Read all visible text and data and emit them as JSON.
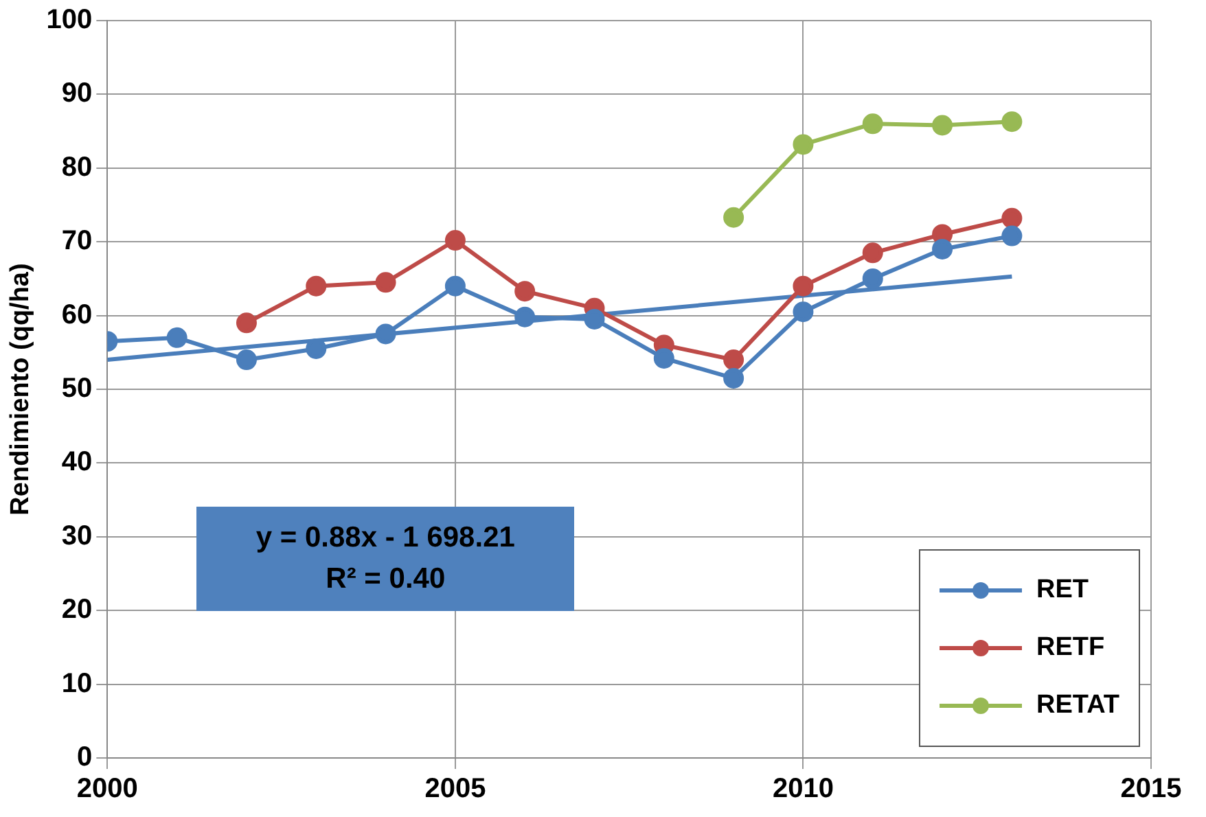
{
  "chart_data": {
    "type": "line",
    "ylabel": "Rendimiento (qq/ha)",
    "xlim": [
      2000,
      2015
    ],
    "xticks": [
      2000,
      2005,
      2010,
      2015
    ],
    "ylim": [
      0,
      100
    ],
    "yticks": [
      0,
      10,
      20,
      30,
      40,
      50,
      60,
      70,
      80,
      90,
      100
    ],
    "grid": true,
    "legend": "bottom right",
    "marker": "circle",
    "line_style": "solid",
    "series": [
      {
        "name": "RET",
        "color": "#4a7ebb",
        "x": [
          2000,
          2001,
          2002,
          2003,
          2004,
          2005,
          2006,
          2007,
          2008,
          2009,
          2010,
          2011,
          2012,
          2013
        ],
        "values": [
          56.5,
          57,
          54,
          55.5,
          57.5,
          64,
          59.8,
          59.5,
          54.2,
          51.5,
          60.5,
          65,
          69,
          70.8
        ]
      },
      {
        "name": "RETF",
        "color": "#be4b48",
        "x": [
          2002,
          2003,
          2004,
          2005,
          2006,
          2007,
          2008,
          2009,
          2010,
          2011,
          2012,
          2013
        ],
        "values": [
          59,
          64,
          64.5,
          70.2,
          63.3,
          61,
          56,
          54,
          64,
          68.5,
          71,
          73.2
        ]
      },
      {
        "name": "RETAT",
        "color": "#98b954",
        "x": [
          2009,
          2010,
          2011,
          2012,
          2013
        ],
        "values": [
          73.3,
          83.2,
          86,
          85.8,
          86.3
        ]
      },
      {
        "type": "line",
        "marker": "none",
        "color": "#4a7ebb",
        "x": [
          2000,
          2013
        ],
        "values": [
          54,
          65.3
        ]
      }
    ],
    "annotations": [
      "y = 0.88x - 1 698.21",
      "R² = 0.40"
    ]
  }
}
